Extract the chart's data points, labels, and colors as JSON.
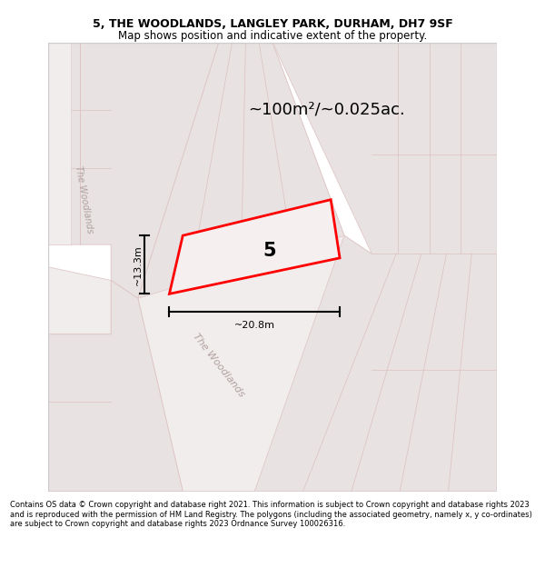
{
  "title_line1": "5, THE WOODLANDS, LANGLEY PARK, DURHAM, DH7 9SF",
  "title_line2": "Map shows position and indicative extent of the property.",
  "area_text": "~100m²/~0.025ac.",
  "plot_number": "5",
  "width_label": "~20.8m",
  "height_label": "~13.3m",
  "footer_text": "Contains OS data © Crown copyright and database right 2021. This information is subject to Crown copyright and database rights 2023 and is reproduced with the permission of HM Land Registry. The polygons (including the associated geometry, namely x, y co-ordinates) are subject to Crown copyright and database rights 2023 Ordnance Survey 100026316.",
  "map_bg": "#f9f4f4",
  "block_color": "#e8e2e2",
  "road_color": "#f2eded",
  "plot_outline_color": "red",
  "street_label": "The Woodlands",
  "line_color": "#e0c8c8",
  "sub_line_color": "#ddc0c0"
}
